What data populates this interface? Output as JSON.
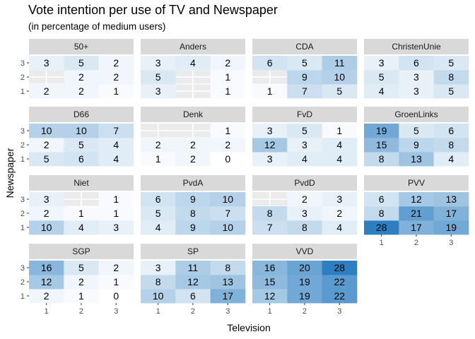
{
  "chart_data": {
    "type": "heatmap",
    "title": "Vote intention per use of TV and Newspaper",
    "subtitle": "(in percentage of medium users)",
    "xlabel": "Television",
    "ylabel": "Newspaper",
    "x_ticks": [
      "1",
      "2",
      "3"
    ],
    "y_ticks": [
      "1",
      "2",
      "3"
    ],
    "fill_scale": {
      "low": "#ffffff",
      "high": "#2e7fc1",
      "min": 0,
      "max": 28
    },
    "facets": [
      {
        "name": "50+",
        "cells": [
          [
            2,
            2,
            1
          ],
          [
            null,
            2,
            2
          ],
          [
            3,
            5,
            2
          ]
        ]
      },
      {
        "name": "Anders",
        "cells": [
          [
            3,
            null,
            1
          ],
          [
            5,
            null,
            1
          ],
          [
            3,
            4,
            2
          ]
        ]
      },
      {
        "name": "CDA",
        "cells": [
          [
            1,
            7,
            5
          ],
          [
            null,
            9,
            10
          ],
          [
            6,
            5,
            11
          ]
        ]
      },
      {
        "name": "ChristenUnie",
        "cells": [
          [
            4,
            3,
            5
          ],
          [
            5,
            3,
            8
          ],
          [
            3,
            6,
            5
          ]
        ]
      },
      {
        "name": "D66",
        "cells": [
          [
            5,
            6,
            4
          ],
          [
            2,
            5,
            4
          ],
          [
            10,
            10,
            7
          ]
        ]
      },
      {
        "name": "Denk",
        "cells": [
          [
            1,
            2,
            0
          ],
          [
            2,
            2,
            2
          ],
          [
            null,
            null,
            1
          ]
        ]
      },
      {
        "name": "FvD",
        "cells": [
          [
            3,
            4,
            4
          ],
          [
            12,
            3,
            4
          ],
          [
            3,
            5,
            1
          ]
        ]
      },
      {
        "name": "GroenLinks",
        "cells": [
          [
            8,
            13,
            4
          ],
          [
            15,
            9,
            8
          ],
          [
            19,
            5,
            6
          ]
        ]
      },
      {
        "name": "Niet",
        "cells": [
          [
            10,
            4,
            3
          ],
          [
            2,
            1,
            1
          ],
          [
            3,
            null,
            1
          ]
        ]
      },
      {
        "name": "PvdA",
        "cells": [
          [
            4,
            9,
            10
          ],
          [
            5,
            8,
            7
          ],
          [
            6,
            9,
            10
          ]
        ]
      },
      {
        "name": "PvdD",
        "cells": [
          [
            7,
            8,
            4
          ],
          [
            8,
            3,
            2
          ],
          [
            null,
            2,
            3
          ]
        ]
      },
      {
        "name": "PVV",
        "cells": [
          [
            28,
            17,
            19
          ],
          [
            8,
            21,
            17
          ],
          [
            6,
            12,
            13
          ]
        ]
      },
      {
        "name": "SGP",
        "cells": [
          [
            2,
            1,
            0
          ],
          [
            12,
            2,
            1
          ],
          [
            16,
            5,
            2
          ]
        ]
      },
      {
        "name": "SP",
        "cells": [
          [
            10,
            6,
            17
          ],
          [
            8,
            12,
            13
          ],
          [
            3,
            11,
            8
          ]
        ]
      },
      {
        "name": "VVD",
        "cells": [
          [
            12,
            19,
            22
          ],
          [
            15,
            19,
            22
          ],
          [
            16,
            20,
            28
          ]
        ]
      }
    ]
  }
}
